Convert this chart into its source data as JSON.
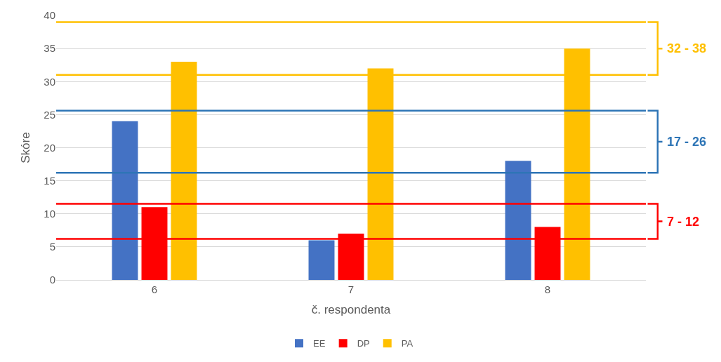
{
  "chart_data": {
    "type": "bar",
    "xlabel": "č. respondenta",
    "ylabel": "Skóre",
    "categories": [
      "6",
      "7",
      "8"
    ],
    "series": [
      {
        "name": "EE",
        "color": "#4472c4",
        "values": [
          24,
          6,
          18
        ]
      },
      {
        "name": "DP",
        "color": "#ff0000",
        "values": [
          11,
          7,
          8
        ]
      },
      {
        "name": "PA",
        "color": "#ffc000",
        "values": [
          33,
          32,
          35
        ]
      }
    ],
    "ylim": [
      0,
      40
    ],
    "yticks": [
      0,
      5,
      10,
      15,
      20,
      25,
      30,
      35,
      40
    ],
    "grid": "y",
    "legend": "bottom",
    "annotations": [
      "32 - 38",
      "17 - 26",
      "7 - 12"
    ],
    "ref_lines": [
      {
        "axis": "y",
        "value": 39,
        "color": "#ffc000"
      },
      {
        "axis": "y",
        "value": 31,
        "color": "#ffc000"
      },
      {
        "axis": "y",
        "value": 25.6,
        "color": "#2e75b6"
      },
      {
        "axis": "y",
        "value": 16.2,
        "color": "#2e75b6"
      },
      {
        "axis": "y",
        "value": 11.5,
        "color": "#ff0000"
      },
      {
        "axis": "y",
        "value": 6.2,
        "color": "#ff0000"
      }
    ]
  }
}
